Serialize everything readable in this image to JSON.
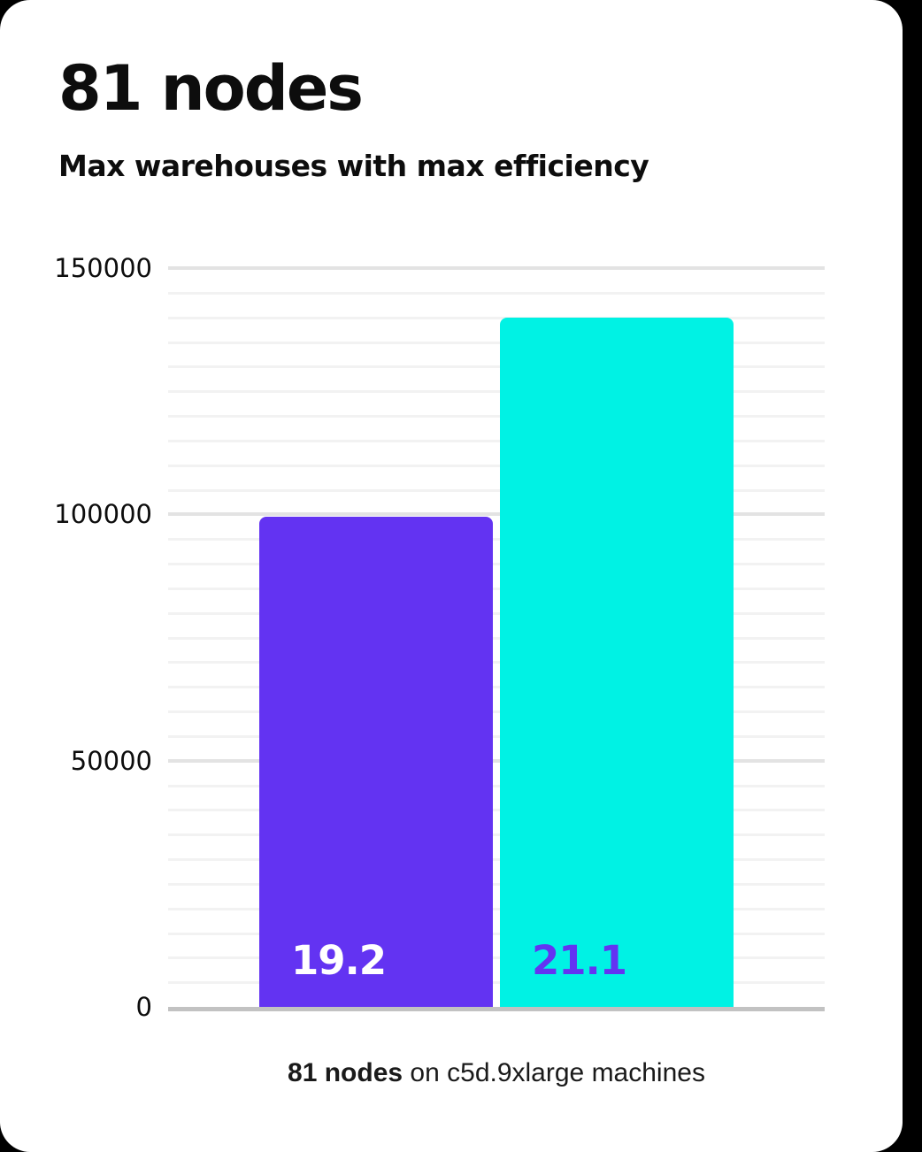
{
  "window": {
    "background_color": "#000000",
    "card_color": "#ffffff"
  },
  "header": {
    "title": "81 nodes",
    "subtitle": "Max warehouses with max efficiency"
  },
  "chart_data": {
    "type": "bar",
    "title": "81 nodes",
    "subtitle": "Max warehouses with max efficiency",
    "categories": [
      "19.2",
      "21.1"
    ],
    "series": [
      {
        "name": "purple-bar",
        "label": "19.2",
        "value": 99500,
        "bar_color": "#6333f2",
        "label_color": "#ffffff"
      },
      {
        "name": "cyan-bar",
        "label": "21.1",
        "value": 140000,
        "bar_color": "#00f2e4",
        "label_color": "#6333f2"
      }
    ],
    "xlabel": "",
    "ylabel": "",
    "ylim": [
      0,
      150000
    ],
    "yticks": [
      0,
      50000,
      100000,
      150000
    ],
    "minor_gridline_step": 5000,
    "major_gridline_step": 50000,
    "grid": true,
    "legend_position": "none",
    "caption_bold": "81 nodes",
    "caption_rest": " on c5d.9xlarge machines"
  },
  "colors": {
    "minor_gridline": "#f2f2f2",
    "major_gridline": "#e3e3e3",
    "zero_axis": "#c2c2c2",
    "text": "#0d0d0d"
  }
}
